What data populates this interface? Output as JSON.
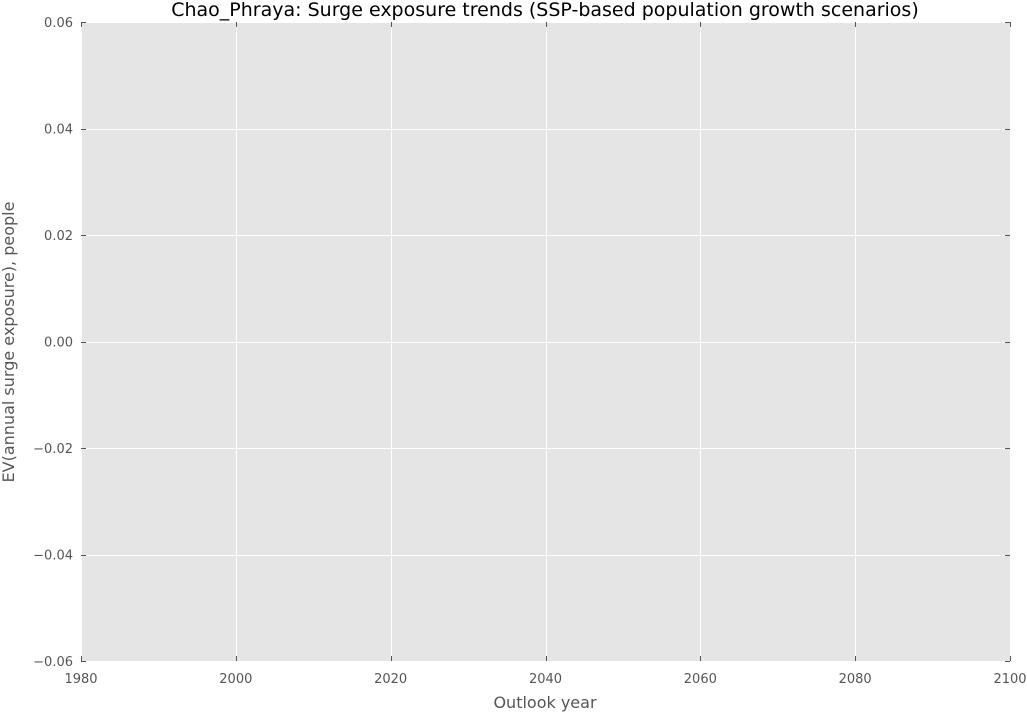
{
  "chart_data": {
    "type": "line",
    "title": "Chao_Phraya: Surge exposure trends (SSP-based population growth scenarios)",
    "xlabel": "Outlook year",
    "ylabel": "EV(annual surge exposure), people",
    "xlim": [
      1980,
      2100
    ],
    "ylim": [
      -0.06,
      0.06
    ],
    "x_ticks": [
      1980,
      2000,
      2020,
      2040,
      2060,
      2080,
      2100
    ],
    "x_tick_labels": [
      "1980",
      "2000",
      "2020",
      "2040",
      "2060",
      "2080",
      "2100"
    ],
    "y_ticks": [
      0.06,
      0.04,
      0.02,
      0.0,
      -0.02,
      -0.04,
      -0.06
    ],
    "y_tick_labels": [
      "0.06",
      "0.04",
      "0.02",
      "0.00",
      "−0.02",
      "−0.04",
      "−0.06"
    ],
    "grid": true,
    "series": [],
    "colors": {
      "plot_background": "#e5e5e5",
      "grid": "#ffffff",
      "tick_mark": "#555555",
      "tick_text": "#555555",
      "title_text": "#000000"
    }
  }
}
